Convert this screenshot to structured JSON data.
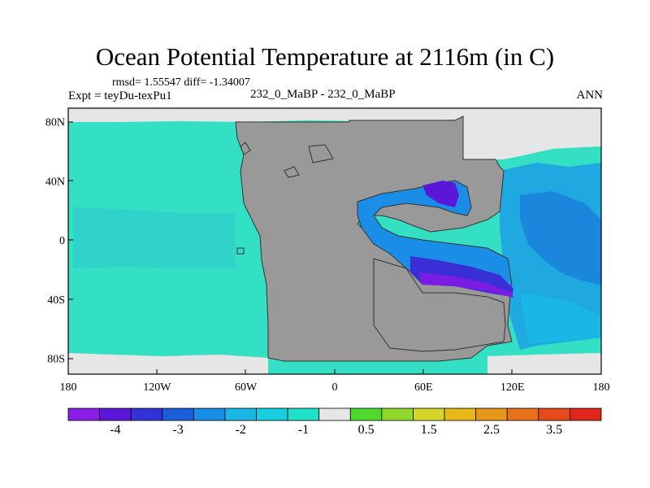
{
  "title": "Ocean Potential Temperature at 2116m (in C)",
  "stats": "rmsd= 1.55547  diff= -1.34007",
  "expt": "Expt = teyDu-texPu1",
  "case": "232_0_MaBP - 232_0_MaBP",
  "season": "ANN",
  "lat_labels": [
    {
      "value": 80,
      "label": "80N"
    },
    {
      "value": 40,
      "label": "40N"
    },
    {
      "value": 0,
      "label": "0"
    },
    {
      "value": -40,
      "label": "40S"
    },
    {
      "value": -80,
      "label": "80S"
    }
  ],
  "lon_labels": [
    {
      "value": -180,
      "label": "180"
    },
    {
      "value": -120,
      "label": "120W"
    },
    {
      "value": -60,
      "label": "60W"
    },
    {
      "value": 0,
      "label": "0"
    },
    {
      "value": 60,
      "label": "60E"
    },
    {
      "value": 120,
      "label": "120E"
    },
    {
      "value": 180,
      "label": "180"
    }
  ],
  "colorbar": {
    "colors": [
      "#8a1ee6",
      "#5a17d9",
      "#3232d8",
      "#1c5fdb",
      "#1a8ee6",
      "#1ab6e6",
      "#17cfe0",
      "#1fe0c8",
      "#e6e6e6",
      "#4fd82d",
      "#8fd82d",
      "#d6d62a",
      "#e6b81a",
      "#e6961a",
      "#e6711a",
      "#e64a1a",
      "#e0261a"
    ],
    "labels": [
      "-4",
      "-3",
      "-2",
      "-1",
      "0.5",
      "1.5",
      "2.5",
      "3.5"
    ]
  },
  "colors": {
    "land": "#999999",
    "ocean": "#33e0c4",
    "ice": "#e6e6e6",
    "coast": "#333333"
  }
}
